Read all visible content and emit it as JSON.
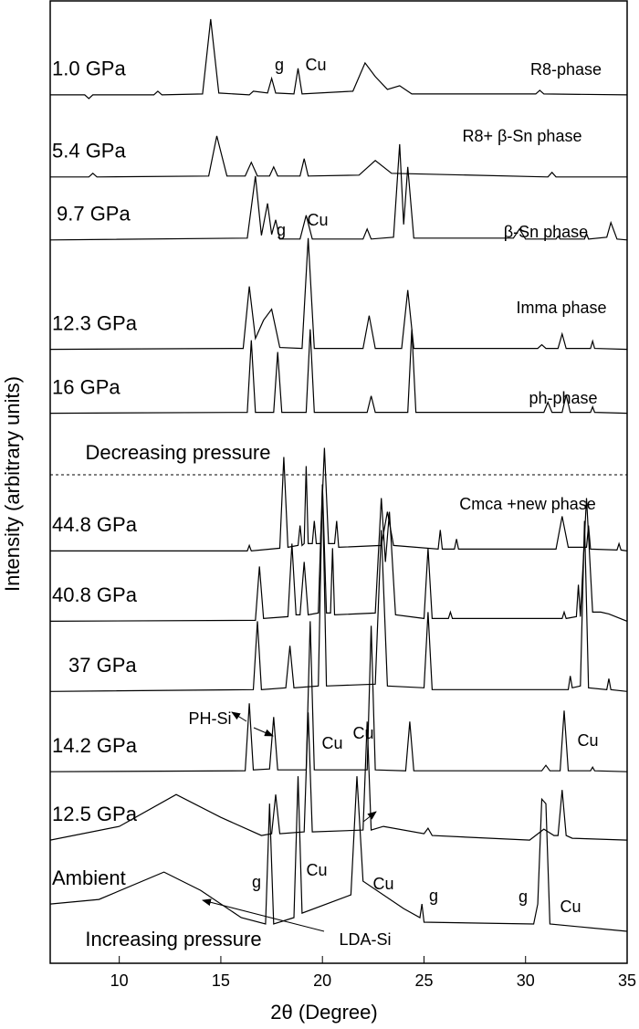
{
  "chart_data": {
    "type": "line",
    "x_label": "2θ (Degree)",
    "y_label": "Intensity (arbitrary units)",
    "xlim": [
      6.6,
      35
    ],
    "xticks": [
      10,
      15,
      20,
      25,
      30,
      35
    ],
    "ylim": [
      0,
      105.5
    ],
    "color": "#000000",
    "series": [
      {
        "name": "1.0 GPa",
        "x": [
          6.6,
          8.3,
          8.5,
          8.7,
          11.7,
          11.9,
          12.1,
          14.1,
          14.5,
          14.9,
          16.4,
          16.6,
          17.3,
          17.5,
          17.7,
          18.6,
          18.8,
          19.0,
          21.5,
          22.1,
          22.6,
          23.2,
          23.8,
          24.4,
          30.5,
          30.7,
          30.9,
          35
        ],
        "values": [
          95.2,
          95.2,
          94.8,
          95.2,
          95.2,
          95.6,
          95.2,
          95.3,
          103.5,
          95.4,
          95.2,
          95.6,
          95.4,
          97,
          95.4,
          95.3,
          98.1,
          95.3,
          95.6,
          98.7,
          97.2,
          95.8,
          96.2,
          95.3,
          95.3,
          95.7,
          95.3,
          95.2
        ]
      },
      {
        "name": "5.4 GPa",
        "x": [
          6.6,
          8.5,
          8.7,
          8.9,
          14.4,
          14.8,
          15.3,
          16.2,
          16.5,
          16.8,
          17.4,
          17.6,
          17.8,
          18.9,
          19.1,
          19.3,
          21.8,
          22.6,
          23.4,
          31.1,
          31.3,
          31.5,
          35
        ],
        "values": [
          86.2,
          86.2,
          86.6,
          86.2,
          86.3,
          90.7,
          86.3,
          86.3,
          87.8,
          86.3,
          86.3,
          87.3,
          86.3,
          86.3,
          88.2,
          86.3,
          86.4,
          88.0,
          86.6,
          86.2,
          86.7,
          86.2,
          86.2
        ]
      },
      {
        "name": "9.7 GPa",
        "x": [
          6.6,
          16.3,
          16.7,
          17.0,
          17.3,
          17.5,
          17.7,
          17.9,
          18.9,
          19.2,
          19.5,
          22.0,
          22.2,
          22.4,
          23.5,
          23.8,
          24.0,
          24.2,
          24.5,
          29.4,
          29.7,
          30.0,
          31.5,
          31.6,
          31.7,
          32.9,
          33.0,
          33.1,
          34.0,
          34.2,
          34.5,
          35
        ],
        "values": [
          79.3,
          79.5,
          86.3,
          79.8,
          83.3,
          79.9,
          81.5,
          79.4,
          79.4,
          82,
          79.4,
          79.4,
          80.5,
          79.4,
          79.6,
          89.8,
          81,
          87.3,
          79.5,
          79.5,
          80.5,
          79.4,
          79.4,
          79.7,
          79.4,
          79.4,
          80,
          79.4,
          79.6,
          81.2,
          79.4,
          79.3
        ]
      },
      {
        "name": "12.3 GPa",
        "x": [
          6.6,
          16.1,
          16.4,
          16.7,
          17.1,
          17.5,
          17.9,
          19.0,
          19.3,
          19.6,
          22.0,
          22.3,
          22.6,
          23.9,
          24.2,
          24.5,
          30.6,
          30.8,
          31.0,
          31.6,
          31.8,
          32.0,
          33.2,
          33.3,
          33.4,
          35
        ],
        "values": [
          67.3,
          67.4,
          74.2,
          68.5,
          70.5,
          71.7,
          67.5,
          67.4,
          79.5,
          67.4,
          67.4,
          71,
          67.4,
          67.4,
          73.8,
          67.4,
          67.4,
          67.8,
          67.4,
          67.4,
          69,
          67.4,
          67.4,
          68.2,
          67.4,
          67.3
        ]
      },
      {
        "name": "16 GPa",
        "x": [
          6.6,
          16.3,
          16.5,
          16.7,
          17.6,
          17.8,
          18.0,
          19.2,
          19.4,
          19.6,
          22.2,
          22.4,
          22.6,
          24.2,
          24.4,
          24.6,
          30.9,
          31.1,
          31.3,
          31.8,
          32.0,
          32.2,
          33.2,
          33.3,
          33.4,
          35
        ],
        "values": [
          60.3,
          60.4,
          68.3,
          60.4,
          60.4,
          67,
          60.4,
          60.4,
          69.5,
          60.4,
          60.4,
          62.2,
          60.4,
          60.4,
          69.5,
          60.4,
          60.4,
          61.5,
          60.4,
          60.4,
          62.3,
          60.4,
          60.4,
          61,
          60.4,
          60.3
        ]
      },
      {
        "name": "44.8 GPa",
        "x": [
          6.6,
          16.3,
          16.4,
          16.5,
          17.9,
          18.1,
          18.3,
          18.8,
          18.9,
          19.0,
          19.1,
          19.2,
          19.3,
          19.5,
          19.6,
          19.7,
          19.9,
          20.1,
          20.3,
          20.6,
          20.7,
          20.8,
          22.9,
          23.2,
          23.5,
          25.7,
          25.8,
          25.9,
          26.5,
          26.6,
          26.7,
          31.5,
          31.8,
          32.1,
          33.0,
          33.1,
          33.2,
          34.5,
          34.6,
          34.7,
          35
        ],
        "values": [
          45.2,
          45.2,
          45.8,
          45.2,
          45.5,
          55.5,
          45.6,
          45.8,
          48,
          45.8,
          46,
          54.5,
          46,
          46,
          48.5,
          46,
          46,
          56.5,
          46,
          46,
          48.5,
          45.6,
          45.8,
          49.5,
          45.8,
          45.4,
          47.5,
          45.4,
          45.4,
          46.5,
          45.4,
          45.4,
          49,
          45.6,
          45.6,
          48,
          45.4,
          45.3,
          46,
          45.3,
          45.2
        ]
      },
      {
        "name": "40.8 GPa",
        "x": [
          6.6,
          16.7,
          16.9,
          17.1,
          18.3,
          18.5,
          18.7,
          18.9,
          19.1,
          19.3,
          19.8,
          20.0,
          20.2,
          20.4,
          20.5,
          20.6,
          22.6,
          22.9,
          23.1,
          23.3,
          23.6,
          25.0,
          25.2,
          25.4,
          26.2,
          26.3,
          26.4,
          31.8,
          31.9,
          32.0,
          32.5,
          32.6,
          32.7,
          33.0,
          33.3,
          33.7,
          34.1,
          35
        ],
        "values": [
          37.5,
          37.6,
          43.5,
          37.8,
          38,
          46,
          38.2,
          38.2,
          44,
          38.2,
          38.4,
          52.5,
          38.4,
          38.4,
          45.5,
          38.2,
          38.4,
          51,
          44,
          49.5,
          38.2,
          37.8,
          45.5,
          37.8,
          37.8,
          38.5,
          37.8,
          37.8,
          38.5,
          37.8,
          38,
          41.5,
          38,
          51,
          38.5,
          38.5,
          38.3,
          37.5
        ]
      },
      {
        "name": "37 GPa",
        "x": [
          6.6,
          16.6,
          16.8,
          17.0,
          18.2,
          18.4,
          18.6,
          19.8,
          20.0,
          20.2,
          22.6,
          22.9,
          23.2,
          25.0,
          25.2,
          25.4,
          32.1,
          32.2,
          32.3,
          32.7,
          32.9,
          33.1,
          34.0,
          34.1,
          34.2,
          35
        ],
        "values": [
          29.8,
          30,
          37.5,
          30,
          30.2,
          34.8,
          30.2,
          30.4,
          52.5,
          30.4,
          30.6,
          47.5,
          30.4,
          30.2,
          38.5,
          30,
          30,
          31.5,
          30.2,
          30.4,
          48.5,
          30.2,
          30,
          31.2,
          30,
          29.8
        ]
      },
      {
        "name": "14.2 GPa",
        "x": [
          6.6,
          16.2,
          16.4,
          16.6,
          17.4,
          17.6,
          17.8,
          19.2,
          19.4,
          19.6,
          22.2,
          22.4,
          22.6,
          24.1,
          24.3,
          24.5,
          30.8,
          31.0,
          31.2,
          31.7,
          31.9,
          32.1,
          33.2,
          33.3,
          33.4,
          35
        ],
        "values": [
          21,
          21.1,
          28.5,
          21.2,
          21.3,
          27,
          21.2,
          21.2,
          37.5,
          21.2,
          21.2,
          37,
          21.2,
          21.1,
          26.5,
          21.1,
          21.1,
          21.7,
          21.1,
          21.1,
          27.7,
          21.1,
          21.1,
          21.5,
          21.1,
          21
        ]
      },
      {
        "name": "12.5 GPa",
        "x": [
          6.6,
          10,
          12.8,
          15,
          17,
          17.5,
          17.7,
          17.9,
          19.1,
          19.3,
          19.5,
          22.0,
          22.2,
          22.4,
          23,
          25.0,
          25.2,
          25.4,
          30.2,
          30.9,
          31.4,
          31.6,
          31.8,
          32.0,
          32.3,
          35
        ],
        "values": [
          13.5,
          15,
          18.5,
          16,
          14,
          14.2,
          18.5,
          14.2,
          14.4,
          27.5,
          14.4,
          14.6,
          26.5,
          14.6,
          15,
          14.2,
          14.8,
          14,
          13.5,
          14.7,
          14,
          14,
          19,
          14,
          13.7,
          13.5
        ]
      },
      {
        "name": "Ambient",
        "x": [
          6.6,
          9,
          12.2,
          14,
          16,
          17.2,
          17.4,
          17.6,
          18.6,
          18.8,
          19.0,
          21.4,
          21.7,
          22.0,
          24.0,
          24.8,
          24.9,
          25.0,
          30.4,
          30.6,
          30.8,
          31.0,
          31.2,
          35
        ],
        "values": [
          6.5,
          7,
          10,
          8,
          5,
          4.3,
          17.5,
          4.3,
          5,
          20.5,
          5.5,
          7.5,
          20.5,
          9,
          6,
          5,
          6.5,
          4.5,
          4.3,
          6.5,
          18,
          17.5,
          4.3,
          3.5
        ]
      }
    ],
    "annotations": [
      "g",
      "Cu",
      "R8-phase",
      "R8+ β-Sn  phase",
      "g",
      "Cu",
      "β-Sn phase",
      "Imma phase",
      "ph-phase",
      "Decreasing pressure",
      "Cmca +new phase",
      "PH-Si",
      "Cu",
      "Cu",
      "Cu",
      "Cu",
      "g",
      "Cu",
      "g",
      "g",
      "Cu",
      "Increasing pressure",
      "LDA-Si"
    ]
  }
}
